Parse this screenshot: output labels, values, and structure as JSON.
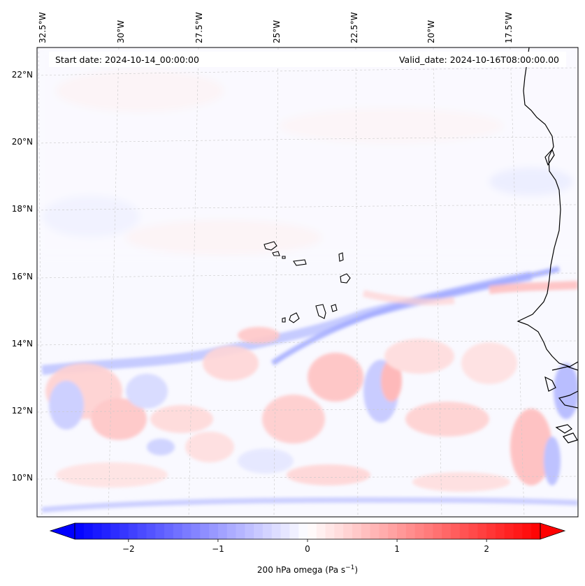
{
  "header": {
    "start_date": "Start date: 2024-10-14_00:00:00",
    "valid_date": "Valid_date: 2024-10-16T08:00:00.00"
  },
  "axes": {
    "lon_labels": [
      "32.5°W",
      "30°W",
      "27.5°W",
      "25°W",
      "22.5°W",
      "20°W",
      "17.5°W"
    ],
    "lat_labels": [
      "22°N",
      "20°N",
      "18°N",
      "16°N",
      "14°N",
      "12°N",
      "10°N"
    ]
  },
  "colorbar": {
    "label_main": "200 hPa omega (Pa s",
    "label_exp": "−1",
    "label_close": ")",
    "ticks": [
      "−2",
      "−1",
      "0",
      "1",
      "2"
    ],
    "tick_values": [
      -2,
      -1,
      0,
      1,
      2
    ],
    "range": [
      -2.6,
      2.6
    ],
    "colors": {
      "negative": "#0000ff",
      "zero": "#ffffff",
      "positive": "#ff0000"
    }
  },
  "map": {
    "lon_range": [
      -33,
      -16
    ],
    "lat_range": [
      9,
      22.8
    ],
    "grid": true,
    "field": "200 hPa omega",
    "coastline_color": "#000000"
  }
}
